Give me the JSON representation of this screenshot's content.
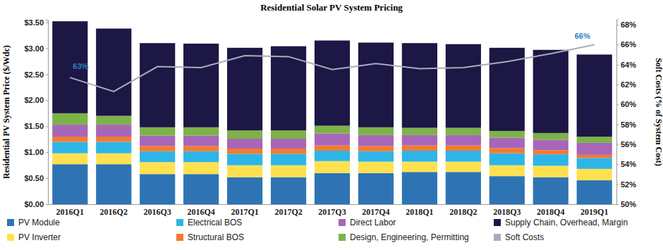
{
  "chart_data": {
    "type": "bar",
    "stacked": true,
    "grid": false,
    "legend": "bottom",
    "title": "Residential Solar PV System Pricing",
    "y_label": "Residential PV System Price ($/Wdc)",
    "y2_label": "Soft Costs (% of System Cost)",
    "categories": [
      "2016Q1",
      "2016Q2",
      "2016Q3",
      "2016Q4",
      "2017Q1",
      "2017Q2",
      "2017Q3",
      "2017Q4",
      "2018Q1",
      "2018Q2",
      "2018Q3",
      "2018Q4",
      "2019Q1"
    ],
    "ylim": [
      0,
      3.55
    ],
    "yticks": [
      {
        "value": 0,
        "label": "$0.00"
      },
      {
        "value": 0.5,
        "label": "$0.50"
      },
      {
        "value": 1,
        "label": "$1.00"
      },
      {
        "value": 1.5,
        "label": "$1.50"
      },
      {
        "value": 2,
        "label": "$2.00"
      },
      {
        "value": 2.5,
        "label": "$2.50"
      },
      {
        "value": 3,
        "label": "$3.00"
      },
      {
        "value": 3.5,
        "label": "$3.50"
      }
    ],
    "y2lim": [
      50,
      68.5
    ],
    "y2ticks": [
      {
        "value": 50,
        "label": "50%"
      },
      {
        "value": 52,
        "label": "52%"
      },
      {
        "value": 54,
        "label": "54%"
      },
      {
        "value": 56,
        "label": "56%"
      },
      {
        "value": 58,
        "label": "58%"
      },
      {
        "value": 60,
        "label": "60%"
      },
      {
        "value": 62,
        "label": "62%"
      },
      {
        "value": 64,
        "label": "64%"
      },
      {
        "value": 66,
        "label": "66%"
      },
      {
        "value": 68,
        "label": "68%"
      }
    ],
    "series": [
      {
        "name": "PV Module",
        "type": "bar",
        "color": "#2e74b5",
        "values": [
          0.77,
          0.77,
          0.58,
          0.58,
          0.52,
          0.52,
          0.6,
          0.6,
          0.62,
          0.62,
          0.54,
          0.52,
          0.46
        ]
      },
      {
        "name": "PV Inverter",
        "type": "bar",
        "color": "#ffe14f",
        "values": [
          0.21,
          0.21,
          0.23,
          0.23,
          0.23,
          0.23,
          0.23,
          0.22,
          0.2,
          0.2,
          0.21,
          0.22,
          0.22
        ]
      },
      {
        "name": "Electrical BOS",
        "type": "bar",
        "color": "#2eb5e8",
        "values": [
          0.22,
          0.22,
          0.21,
          0.21,
          0.22,
          0.22,
          0.2,
          0.2,
          0.21,
          0.21,
          0.23,
          0.22,
          0.21
        ]
      },
      {
        "name": "Structural BOS",
        "type": "bar",
        "color": "#f47a2f",
        "values": [
          0.1,
          0.1,
          0.1,
          0.1,
          0.1,
          0.1,
          0.1,
          0.1,
          0.1,
          0.1,
          0.1,
          0.08,
          0.06
        ]
      },
      {
        "name": "Direct Labor",
        "type": "bar",
        "color": "#a866b8",
        "values": [
          0.23,
          0.23,
          0.2,
          0.2,
          0.19,
          0.19,
          0.23,
          0.21,
          0.2,
          0.2,
          0.2,
          0.2,
          0.23
        ]
      },
      {
        "name": "Design, Engineering, Permitting",
        "type": "bar",
        "color": "#7db249",
        "values": [
          0.22,
          0.17,
          0.16,
          0.16,
          0.16,
          0.16,
          0.15,
          0.15,
          0.14,
          0.14,
          0.13,
          0.13,
          0.12
        ]
      },
      {
        "name": "Supply Chain, Overhead, Margin",
        "type": "bar",
        "color": "#1c1745",
        "values": [
          1.77,
          1.68,
          1.62,
          1.61,
          1.59,
          1.62,
          1.64,
          1.63,
          1.63,
          1.61,
          1.6,
          1.6,
          1.58
        ]
      },
      {
        "name": "Soft Costs",
        "type": "line",
        "axis": "y2",
        "color": "#a8acbc",
        "values": [
          62.7,
          61.3,
          63.8,
          63.7,
          64.9,
          64.8,
          63.5,
          64.1,
          63.6,
          63.7,
          64.3,
          65.1,
          66.0
        ]
      }
    ],
    "annotations": [
      {
        "text": "63%",
        "x": "2016Q1",
        "y": 63
      },
      {
        "text": "66%",
        "x": "2019Q1",
        "y": 66
      }
    ]
  }
}
